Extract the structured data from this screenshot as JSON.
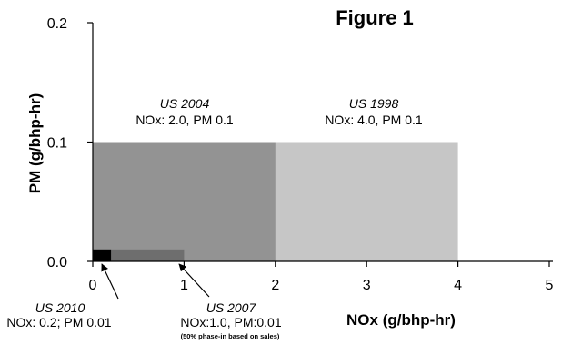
{
  "chart_data": {
    "type": "area",
    "title": "Figure 1",
    "xlabel": "NOx (g/bhp-hr)",
    "ylabel": "PM (g/bhp-hr)",
    "xlim": [
      0,
      5
    ],
    "ylim": [
      0,
      0.2
    ],
    "x_ticks": [
      "0",
      "1",
      "2",
      "3",
      "4",
      "5"
    ],
    "y_ticks": [
      "0.0",
      "0.1",
      "0.2"
    ],
    "grid": false,
    "series": [
      {
        "name": "US 1998",
        "nox": 4.0,
        "pm": 0.1,
        "color": "#c6c6c6",
        "detail": "NOx: 4.0, PM 0.1"
      },
      {
        "name": "US 2004",
        "nox": 2.0,
        "pm": 0.1,
        "color": "#939393",
        "detail": "NOx: 2.0, PM 0.1"
      },
      {
        "name": "US 2007",
        "nox": 1.0,
        "pm": 0.01,
        "color": "#6e6e6e",
        "detail": "NOx:1.0, PM:0.01",
        "note": "(50% phase-in based on sales)"
      },
      {
        "name": "US 2010",
        "nox": 0.2,
        "pm": 0.01,
        "color": "#000000",
        "detail": "NOx: 0.2; PM 0.01"
      }
    ]
  }
}
